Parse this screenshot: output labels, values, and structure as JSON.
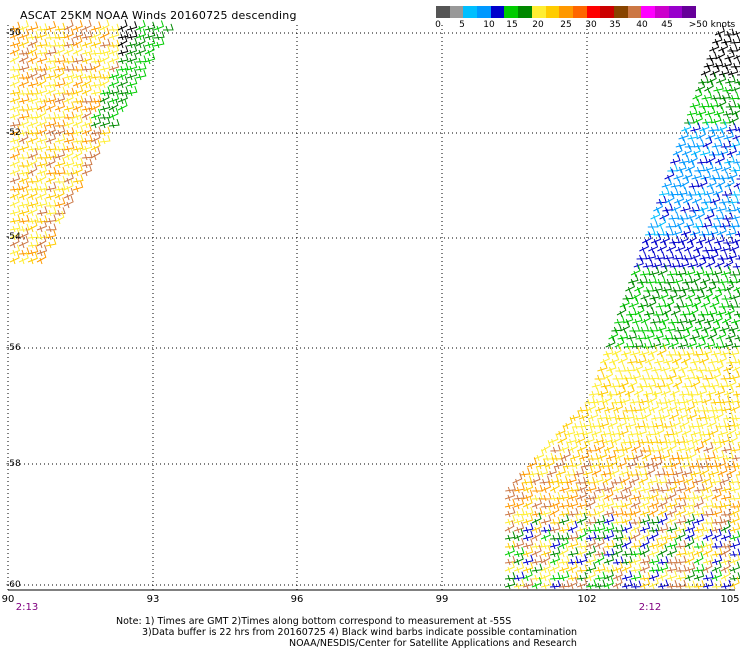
{
  "title": "ASCAT 25KM NOAA Winds 20160725 descending",
  "legend": {
    "colors": [
      "#555555",
      "#999999",
      "#00bfff",
      "#0099ff",
      "#0000cc",
      "#00cc00",
      "#008800",
      "#ffee33",
      "#ffcc00",
      "#ff9900",
      "#ff6600",
      "#ff0000",
      "#cc0000",
      "#884400",
      "#cc7744",
      "#ff00ff",
      "#cc00cc",
      "#9900cc",
      "#660099"
    ],
    "ticks": [
      "0",
      "5",
      "10",
      "15",
      "20",
      "25",
      "30",
      "35",
      "40",
      "45",
      ">50 knots"
    ]
  },
  "axes": {
    "lat_labels": [
      "-50",
      "-52",
      "-54",
      "-56",
      "-58",
      "-60"
    ],
    "lon_labels": [
      "90",
      "93",
      "96",
      "99",
      "102",
      "105"
    ]
  },
  "times": {
    "left": "2:13",
    "right": "2:12"
  },
  "notes": {
    "line1": "Note: 1) Times are GMT 2)Times along bottom correspond to measurement at -55S",
    "line2": "3)Data buffer is 22 hrs from 20160725 4) Black wind barbs indicate possible contamination",
    "line3": "NOAA/NESDIS/Center for Satellite Applications and Research"
  }
}
